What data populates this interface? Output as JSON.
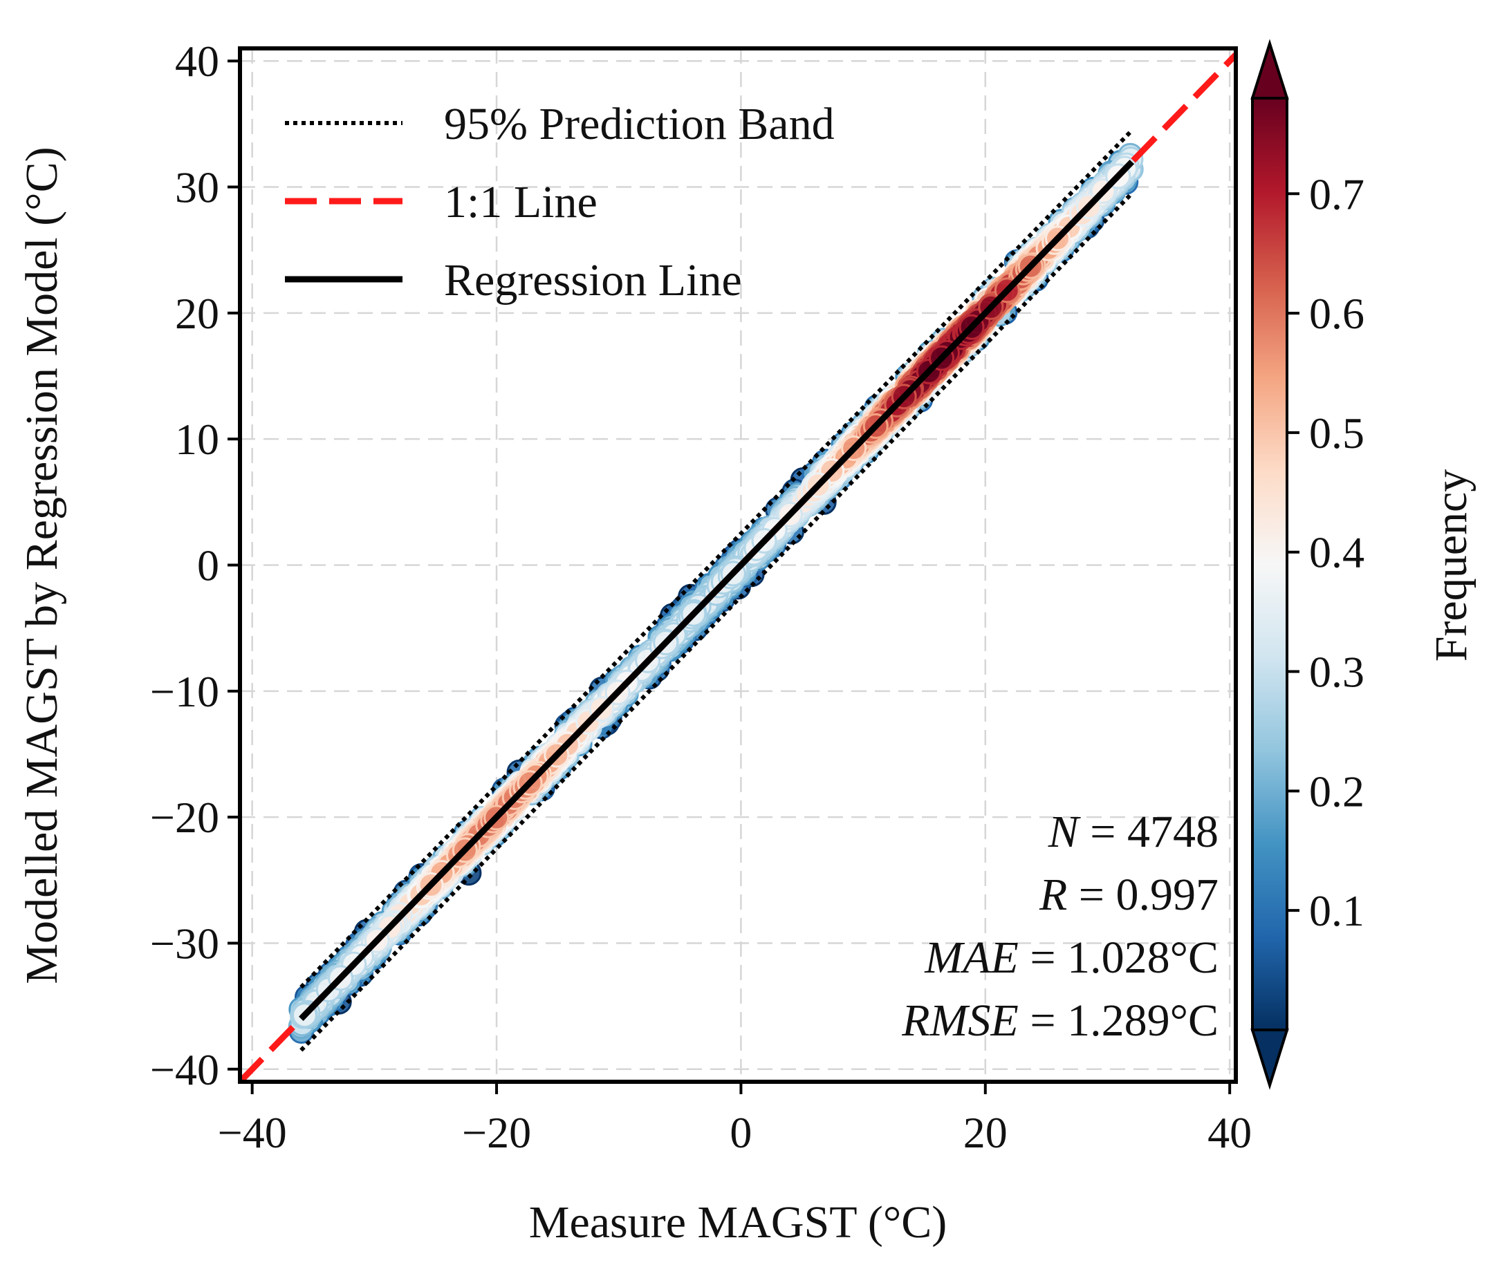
{
  "chart_data": {
    "type": "scatter",
    "xlabel": "Measure MAGST (°C)",
    "ylabel": "Modelled MAGST by Regression Model (°C)",
    "xlim": [
      -41,
      40.5
    ],
    "ylim": [
      -41,
      41
    ],
    "xticks": [
      -40,
      -20,
      0,
      20,
      40
    ],
    "yticks": [
      -40,
      -30,
      -20,
      -10,
      0,
      10,
      20,
      30,
      40
    ],
    "x_tick_labels": [
      "−40",
      "−20",
      "0",
      "20",
      "40"
    ],
    "y_tick_labels": [
      "−40",
      "−30",
      "−20",
      "−10",
      "0",
      "10",
      "20",
      "30",
      "40"
    ],
    "grid": true,
    "legend": {
      "position": "top-left",
      "entries": [
        {
          "label": "95% Prediction Band",
          "style": "dotted",
          "color": "#000000"
        },
        {
          "label": "1:1 Line",
          "style": "dashed",
          "color": "#ff1a1a"
        },
        {
          "label": "Regression Line",
          "style": "solid",
          "color": "#000000"
        }
      ]
    },
    "series": [
      {
        "name": "1:1 Line",
        "type": "line",
        "x": [
          -41,
          40.5
        ],
        "y": [
          -41,
          40.5
        ]
      },
      {
        "name": "Regression Line",
        "type": "line",
        "x": [
          -36,
          32
        ],
        "y": [
          -36,
          32
        ]
      },
      {
        "name": "95% Prediction Band upper",
        "type": "line",
        "x": [
          -36,
          32
        ],
        "y": [
          -33.5,
          34.5
        ]
      },
      {
        "name": "95% Prediction Band lower",
        "type": "line",
        "x": [
          -36,
          32
        ],
        "y": [
          -38.5,
          29.5
        ]
      },
      {
        "name": "Samples (density-coloured)",
        "type": "scatter",
        "x_range": [
          -36,
          32
        ]
      }
    ],
    "statistics": {
      "N": {
        "label": "N",
        "value": "4748"
      },
      "R": {
        "label": "R",
        "value": "0.997"
      },
      "MAE": {
        "label": "MAE",
        "value": "1.028°C"
      },
      "RMSE": {
        "label": "RMSE",
        "value": "1.289°C"
      }
    },
    "colorbar": {
      "label": "Frequency",
      "range": [
        0.0,
        0.78
      ],
      "ticks": [
        0.1,
        0.2,
        0.3,
        0.4,
        0.5,
        0.6,
        0.7
      ],
      "tick_labels": [
        "0.1",
        "0.2",
        "0.3",
        "0.4",
        "0.5",
        "0.6",
        "0.7"
      ],
      "extend": "both",
      "colormap": "RdBu_r"
    }
  },
  "colors": {
    "one_to_one": "#ff1a1a",
    "regression": "#000000",
    "band": "#000000",
    "cmap": [
      "#053061",
      "#2166ac",
      "#4393c3",
      "#92c5de",
      "#d1e5f0",
      "#f7f7f7",
      "#fddbc7",
      "#f4a582",
      "#d6604d",
      "#b2182b",
      "#67001f"
    ]
  }
}
